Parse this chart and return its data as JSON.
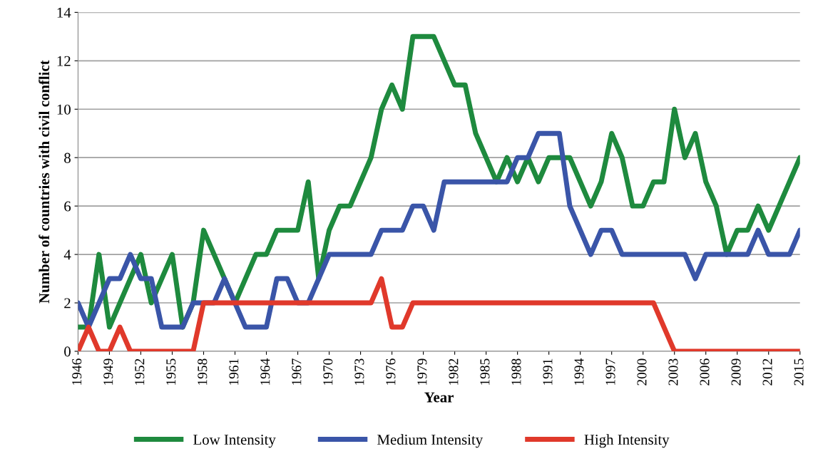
{
  "chart_data": {
    "type": "line",
    "xlabel": "Year",
    "ylabel": "Number of countries with civil conflict",
    "x": [
      1946,
      1947,
      1948,
      1949,
      1950,
      1951,
      1952,
      1953,
      1954,
      1955,
      1956,
      1957,
      1958,
      1959,
      1960,
      1961,
      1962,
      1963,
      1964,
      1965,
      1966,
      1967,
      1968,
      1969,
      1970,
      1971,
      1972,
      1973,
      1974,
      1975,
      1976,
      1977,
      1978,
      1979,
      1980,
      1981,
      1982,
      1983,
      1984,
      1985,
      1986,
      1987,
      1988,
      1989,
      1990,
      1991,
      1992,
      1993,
      1994,
      1995,
      1996,
      1997,
      1998,
      1999,
      2000,
      2001,
      2002,
      2003,
      2004,
      2005,
      2006,
      2007,
      2008,
      2009,
      2010,
      2011,
      2012,
      2013,
      2014,
      2015
    ],
    "series": [
      {
        "name": "Low Intensity",
        "color": "#1e8a3e",
        "values": [
          1,
          1,
          4,
          1,
          2,
          3,
          4,
          2,
          3,
          4,
          1,
          2,
          5,
          4,
          3,
          2,
          3,
          4,
          4,
          5,
          5,
          5,
          7,
          3,
          5,
          6,
          6,
          7,
          8,
          10,
          11,
          10,
          13,
          13,
          13,
          12,
          11,
          11,
          9,
          8,
          7,
          8,
          7,
          8,
          7,
          8,
          8,
          8,
          7,
          6,
          7,
          9,
          8,
          6,
          6,
          7,
          7,
          10,
          8,
          9,
          7,
          6,
          4,
          5,
          5,
          6,
          5,
          6,
          7,
          8
        ]
      },
      {
        "name": "Medium Intensity",
        "color": "#3a55a8",
        "values": [
          2,
          1,
          2,
          3,
          3,
          4,
          3,
          3,
          1,
          1,
          1,
          2,
          2,
          2,
          3,
          2,
          1,
          1,
          1,
          3,
          3,
          2,
          2,
          3,
          4,
          4,
          4,
          4,
          4,
          5,
          5,
          5,
          6,
          6,
          5,
          7,
          7,
          7,
          7,
          7,
          7,
          7,
          8,
          8,
          9,
          9,
          9,
          6,
          5,
          4,
          5,
          5,
          4,
          4,
          4,
          4,
          4,
          4,
          4,
          3,
          4,
          4,
          4,
          4,
          4,
          5,
          4,
          4,
          4,
          5
        ]
      },
      {
        "name": "High Intensity",
        "color": "#e0392b",
        "values": [
          0,
          1,
          0,
          0,
          1,
          0,
          0,
          0,
          0,
          0,
          0,
          0,
          2,
          2,
          2,
          2,
          2,
          2,
          2,
          2,
          2,
          2,
          2,
          2,
          2,
          2,
          2,
          2,
          2,
          3,
          1,
          1,
          2,
          2,
          2,
          2,
          2,
          2,
          2,
          2,
          2,
          2,
          2,
          2,
          2,
          2,
          2,
          2,
          2,
          2,
          2,
          2,
          2,
          2,
          2,
          2,
          1,
          0,
          0,
          0,
          0,
          0,
          0,
          0,
          0,
          0,
          0,
          0,
          0,
          0
        ]
      }
    ],
    "xlim": [
      1946,
      2015
    ],
    "xticks": [
      1946,
      1949,
      1952,
      1955,
      1958,
      1961,
      1964,
      1967,
      1970,
      1973,
      1976,
      1979,
      1982,
      1985,
      1988,
      1991,
      1994,
      1997,
      2000,
      2003,
      2006,
      2009,
      2012,
      2015
    ],
    "ylim": [
      0,
      14
    ],
    "yticks": [
      0,
      2,
      4,
      6,
      8,
      10,
      12,
      14
    ],
    "grid": "y",
    "legend": "bottom",
    "marker": "none",
    "line_style": "solid"
  }
}
